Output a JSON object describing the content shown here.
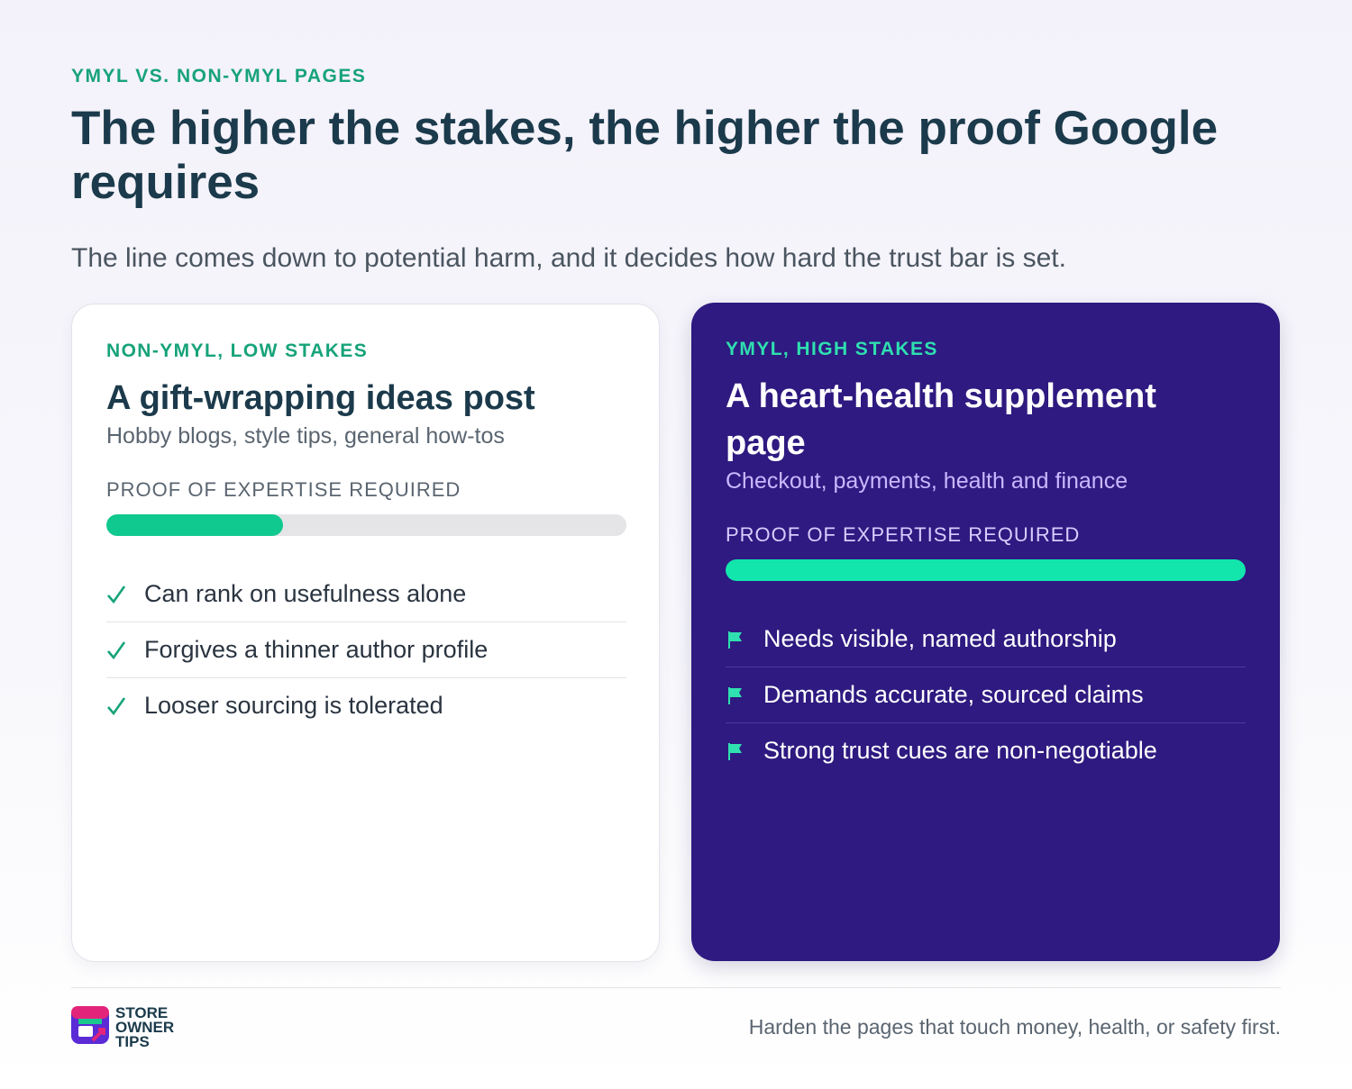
{
  "header": {
    "eyebrow": "YMYL VS. NON-YMYL PAGES",
    "title": "The higher the stakes, the higher the proof Google requires",
    "subtitle": "The line comes down to potential harm, and it decides how hard the trust bar is set."
  },
  "cards": [
    {
      "tag": "NON-YMYL, LOW STAKES",
      "title": "A gift-wrapping ideas post",
      "examples": "Hobby blogs, style tips, general how-tos",
      "meter_label": "PROOF OF EXPERTISE REQUIRED",
      "items": [
        "Can rank on usefulness alone",
        "Forgives a thinner author profile",
        "Looser sourcing is tolerated"
      ]
    },
    {
      "tag": "YMYL, HIGH STAKES",
      "title": "A heart-health supplement page",
      "examples": "Checkout, payments, health and finance",
      "meter_label": "PROOF OF EXPERTISE REQUIRED",
      "items": [
        "Needs visible, named authorship",
        "Demands accurate, sourced claims",
        "Strong trust cues are non-negotiable"
      ]
    }
  ],
  "footer": {
    "brand": [
      "STORE",
      "OWNER",
      "TIPS"
    ],
    "tagline": "Harden the pages that touch money, health, or safety first."
  }
}
